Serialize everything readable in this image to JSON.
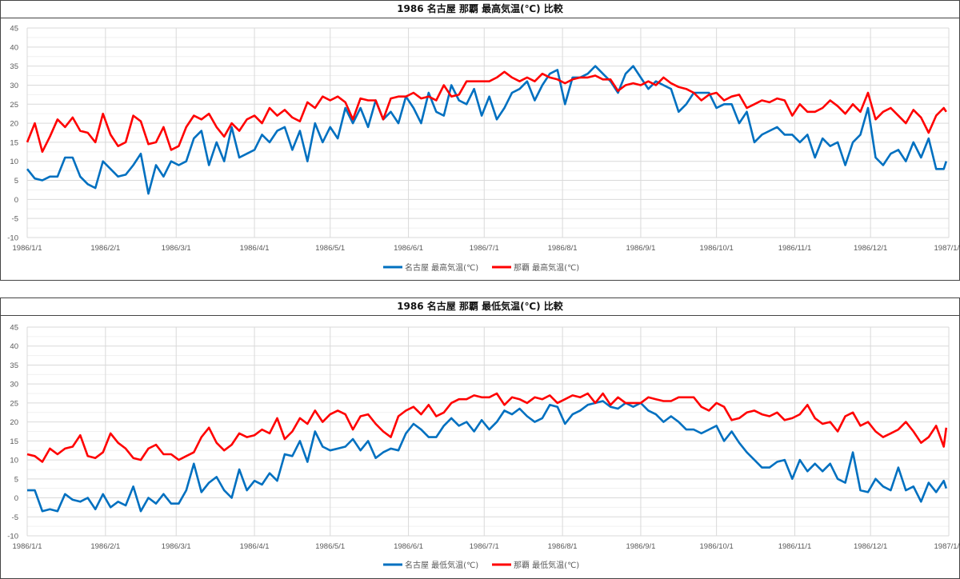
{
  "chart_data": [
    {
      "type": "line",
      "title": "1986 名古屋 那覇 最高気温(℃) 比較",
      "xlabel": "",
      "ylabel": "",
      "ylim": [
        -10,
        45
      ],
      "yticks": [
        "45",
        "40",
        "35",
        "30",
        "25",
        "20",
        "15",
        "10",
        "5",
        "0",
        "-5",
        "-10"
      ],
      "ytick_values": [
        45,
        40,
        35,
        30,
        25,
        20,
        15,
        10,
        5,
        0,
        -5,
        -10
      ],
      "xtick_labels": [
        "1986/1/1",
        "1986/2/1",
        "1986/3/1",
        "1986/4/1",
        "1986/5/1",
        "1986/6/1",
        "1986/7/1",
        "1986/8/1",
        "1986/9/1",
        "1986/10/1",
        "1986/11/1",
        "1986/12/1",
        "1987/1/1"
      ],
      "xtick_days": [
        0,
        31,
        59,
        90,
        120,
        151,
        181,
        212,
        243,
        273,
        304,
        334,
        365
      ],
      "xlim_days": [
        0,
        365
      ],
      "grid": true,
      "legend_position": "bottom",
      "days": [
        0,
        3,
        6,
        9,
        12,
        15,
        18,
        21,
        24,
        27,
        30,
        33,
        36,
        39,
        42,
        45,
        48,
        51,
        54,
        57,
        60,
        63,
        66,
        69,
        72,
        75,
        78,
        81,
        84,
        87,
        90,
        93,
        96,
        99,
        102,
        105,
        108,
        111,
        114,
        117,
        120,
        123,
        126,
        129,
        132,
        135,
        138,
        141,
        144,
        147,
        150,
        153,
        156,
        159,
        162,
        165,
        168,
        171,
        174,
        177,
        180,
        183,
        186,
        189,
        192,
        195,
        198,
        201,
        204,
        207,
        210,
        213,
        216,
        219,
        222,
        225,
        228,
        231,
        234,
        237,
        240,
        243,
        246,
        249,
        252,
        255,
        258,
        261,
        264,
        267,
        270,
        273,
        276,
        279,
        282,
        285,
        288,
        291,
        294,
        297,
        300,
        303,
        306,
        309,
        312,
        315,
        318,
        321,
        324,
        327,
        330,
        333,
        336,
        339,
        342,
        345,
        348,
        351,
        354,
        357,
        360,
        363,
        364
      ],
      "series": [
        {
          "name": "名古屋 最高気温(℃)",
          "color": "#0070C0",
          "values": [
            8,
            5.5,
            5,
            6,
            6,
            11,
            11,
            6,
            4,
            3,
            10,
            8,
            6,
            6.5,
            9,
            12,
            1.5,
            9,
            6,
            10,
            9,
            10,
            16,
            18,
            9,
            15,
            10,
            19,
            11,
            12,
            13,
            17,
            15,
            18,
            19,
            13,
            18,
            10,
            20,
            15,
            19,
            16,
            24,
            20,
            24,
            19,
            26,
            21,
            23,
            20,
            27,
            24,
            20,
            28,
            23,
            22,
            30,
            26,
            25,
            29,
            22,
            27,
            21,
            24,
            28,
            29,
            31,
            26,
            30,
            33,
            34,
            25,
            32,
            32,
            33,
            35,
            33,
            31,
            28,
            33,
            35,
            32,
            29,
            31,
            30,
            29,
            23,
            25,
            28,
            28,
            28,
            24,
            25,
            25,
            20,
            23,
            15,
            17,
            18,
            19,
            17,
            17,
            15,
            17,
            11,
            16,
            14,
            15,
            9,
            15,
            17,
            24,
            11,
            9,
            12,
            13,
            10,
            15,
            11,
            16,
            8,
            8,
            10
          ]
        },
        {
          "name": "那覇 最高気温(℃)",
          "color": "#FF0000",
          "values": [
            15,
            20,
            12.5,
            16.5,
            21,
            19,
            21.5,
            18,
            17.5,
            15,
            22.5,
            17,
            14,
            15,
            22,
            20.5,
            14.5,
            15,
            19,
            13,
            14,
            19,
            22,
            21,
            22.5,
            19,
            16.5,
            20,
            18,
            21,
            22,
            20,
            24,
            22,
            23.5,
            21.5,
            20.5,
            25.5,
            24,
            27,
            26,
            27,
            25.5,
            21,
            26.5,
            26,
            26,
            21,
            26.5,
            27,
            27,
            28,
            26.5,
            27,
            26,
            30,
            27,
            27.5,
            31,
            31,
            31,
            31,
            32,
            33.5,
            32,
            31,
            32,
            31,
            33,
            32,
            31.5,
            30.5,
            31.5,
            32,
            32,
            32.5,
            31.5,
            31.5,
            28.5,
            30,
            30.5,
            30,
            31,
            30,
            32,
            30.5,
            29.5,
            29,
            28,
            26,
            27.5,
            28,
            26,
            27,
            27.5,
            24,
            25,
            26,
            25.5,
            26.5,
            26,
            22,
            25,
            23,
            23,
            24,
            26,
            24.5,
            22.5,
            25,
            23,
            28,
            21,
            23,
            24,
            22,
            20,
            23.5,
            21.5,
            17.5,
            22,
            24,
            23
          ]
        }
      ]
    },
    {
      "type": "line",
      "title": "1986 名古屋 那覇 最低気温(℃) 比較",
      "xlabel": "",
      "ylabel": "",
      "ylim": [
        -10,
        45
      ],
      "yticks": [
        "45",
        "40",
        "35",
        "30",
        "25",
        "20",
        "15",
        "10",
        "5",
        "0",
        "-5",
        "-10"
      ],
      "ytick_values": [
        45,
        40,
        35,
        30,
        25,
        20,
        15,
        10,
        5,
        0,
        -5,
        -10
      ],
      "xtick_labels": [
        "1986/1/1",
        "1986/2/1",
        "1986/3/1",
        "1986/4/1",
        "1986/5/1",
        "1986/6/1",
        "1986/7/1",
        "1986/8/1",
        "1986/9/1",
        "1986/10/1",
        "1986/11/1",
        "1986/12/1",
        "1987/1/1"
      ],
      "xtick_days": [
        0,
        31,
        59,
        90,
        120,
        151,
        181,
        212,
        243,
        273,
        304,
        334,
        365
      ],
      "xlim_days": [
        0,
        365
      ],
      "grid": true,
      "legend_position": "bottom",
      "days": [
        0,
        3,
        6,
        9,
        12,
        15,
        18,
        21,
        24,
        27,
        30,
        33,
        36,
        39,
        42,
        45,
        48,
        51,
        54,
        57,
        60,
        63,
        66,
        69,
        72,
        75,
        78,
        81,
        84,
        87,
        90,
        93,
        96,
        99,
        102,
        105,
        108,
        111,
        114,
        117,
        120,
        123,
        126,
        129,
        132,
        135,
        138,
        141,
        144,
        147,
        150,
        153,
        156,
        159,
        162,
        165,
        168,
        171,
        174,
        177,
        180,
        183,
        186,
        189,
        192,
        195,
        198,
        201,
        204,
        207,
        210,
        213,
        216,
        219,
        222,
        225,
        228,
        231,
        234,
        237,
        240,
        243,
        246,
        249,
        252,
        255,
        258,
        261,
        264,
        267,
        270,
        273,
        276,
        279,
        282,
        285,
        288,
        291,
        294,
        297,
        300,
        303,
        306,
        309,
        312,
        315,
        318,
        321,
        324,
        327,
        330,
        333,
        336,
        339,
        342,
        345,
        348,
        351,
        354,
        357,
        360,
        363,
        364
      ],
      "series": [
        {
          "name": "名古屋 最低気温(℃)",
          "color": "#0070C0",
          "values": [
            2,
            2,
            -3.5,
            -3,
            -3.5,
            1,
            -0.5,
            -1,
            0,
            -3,
            1,
            -2.5,
            -1,
            -2,
            3,
            -3.5,
            0,
            -1.5,
            1,
            -1.5,
            -1.5,
            2,
            9,
            1.5,
            4,
            5.5,
            2,
            0,
            7.5,
            2,
            4.5,
            3.5,
            6.5,
            4.5,
            11.5,
            11,
            15,
            9.5,
            17.5,
            13.5,
            12.5,
            13,
            13.5,
            15.5,
            12.5,
            15,
            10.5,
            12,
            13,
            12.5,
            17,
            19.5,
            18,
            16,
            16,
            19,
            21,
            19,
            20,
            17.5,
            20.5,
            18,
            20,
            23,
            22,
            23.5,
            21.5,
            20,
            21,
            24.5,
            24,
            19.5,
            22,
            23,
            24.5,
            25,
            25.5,
            24,
            23.5,
            25,
            24,
            25,
            23,
            22,
            20,
            21.5,
            20,
            18,
            18,
            17,
            18,
            19,
            15,
            17.5,
            14.5,
            12,
            10,
            8,
            8,
            9.5,
            10,
            5,
            10,
            7,
            9,
            7,
            9,
            5,
            4,
            12,
            2,
            1.5,
            5,
            3,
            2,
            8,
            2,
            3,
            -1,
            4,
            1.5,
            4.5,
            2.5
          ]
        },
        {
          "name": "那覇 最低気温(℃)",
          "color": "#FF0000",
          "values": [
            11.5,
            11,
            9.5,
            13,
            11.5,
            13,
            13.5,
            16.5,
            11,
            10.5,
            12,
            17,
            14.5,
            13,
            10.5,
            10,
            13,
            14,
            11.5,
            11.5,
            10,
            11,
            12,
            16,
            18.5,
            14.5,
            12.5,
            14,
            17,
            16,
            16.5,
            18,
            17,
            21,
            15.5,
            17.5,
            21,
            19.5,
            23,
            20,
            22,
            23,
            22,
            18,
            21.5,
            22,
            19.5,
            17.5,
            16,
            21.5,
            23,
            24,
            22,
            24.5,
            21.5,
            22.5,
            25,
            26,
            26,
            27,
            26.5,
            26.5,
            27.5,
            24.5,
            26.5,
            26,
            25,
            26.5,
            26,
            27,
            25,
            26,
            27,
            26.5,
            27.5,
            25,
            27.5,
            24.5,
            26.5,
            25,
            25,
            25,
            26.5,
            26,
            25.5,
            25.5,
            26.5,
            26.5,
            26.5,
            24,
            23,
            25,
            24,
            20.5,
            21,
            22.5,
            23,
            22,
            21.5,
            22.5,
            20.5,
            21,
            22,
            24.5,
            21,
            19.5,
            20,
            17.5,
            21.5,
            22.5,
            19,
            20,
            17.5,
            16,
            17,
            18,
            20,
            17.5,
            14.5,
            16,
            19,
            13.5,
            18.5
          ]
        }
      ]
    }
  ]
}
